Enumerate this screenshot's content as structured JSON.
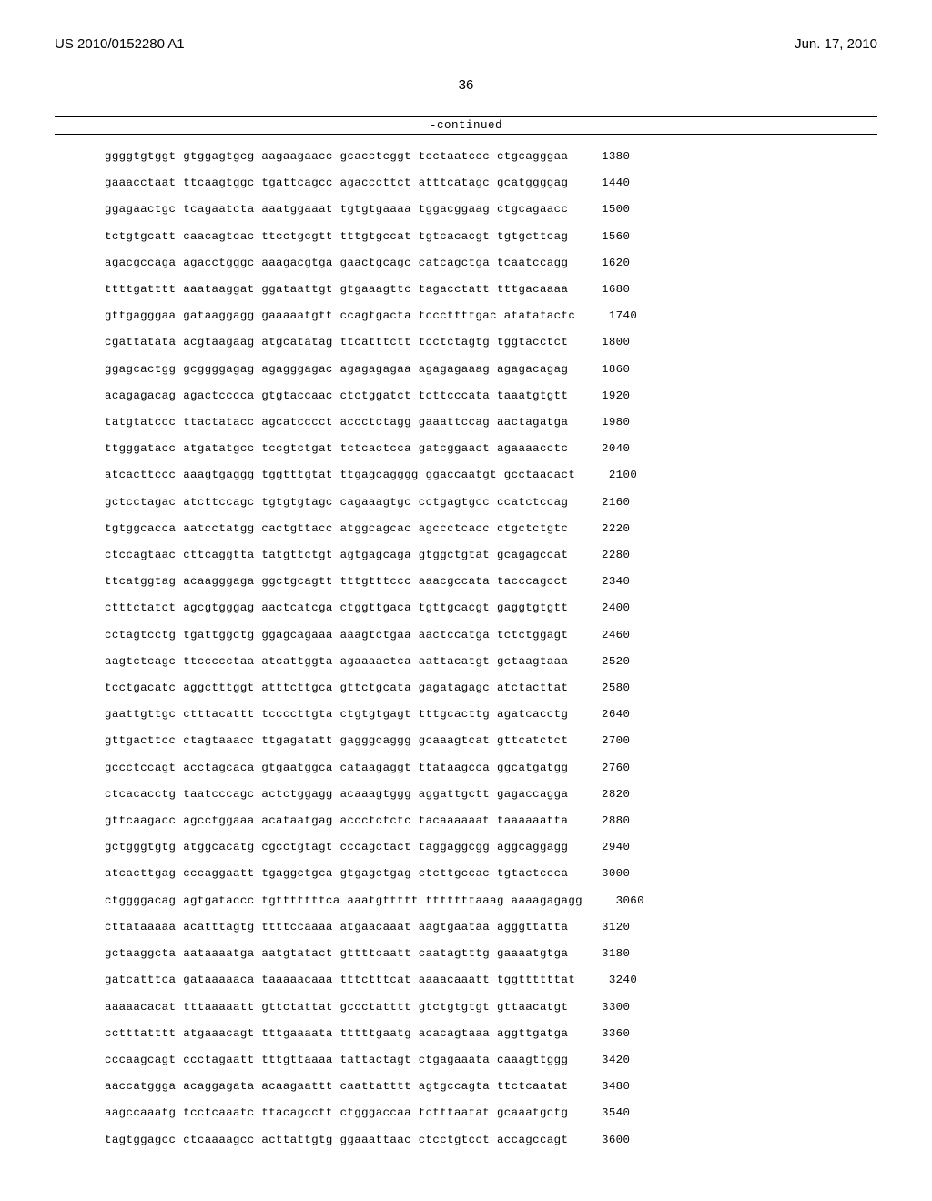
{
  "header": {
    "pubnum": "US 2010/0152280 A1",
    "pubdate": "Jun. 17, 2010",
    "pagenum": "36",
    "continued": "-continued"
  },
  "sequence": {
    "rows": [
      {
        "text": "ggggtgtggt gtggagtgcg aagaagaacc gcacctcggt tcctaatccc ctgcagggaa",
        "num": "1380"
      },
      {
        "text": "gaaacctaat ttcaagtggc tgattcagcc agacccttct atttcatagc gcatggggag",
        "num": "1440"
      },
      {
        "text": "ggagaactgc tcagaatcta aaatggaaat tgtgtgaaaa tggacggaag ctgcagaacc",
        "num": "1500"
      },
      {
        "text": "tctgtgcatt caacagtcac ttcctgcgtt tttgtgccat tgtcacacgt tgtgcttcag",
        "num": "1560"
      },
      {
        "text": "agacgccaga agacctgggc aaagacgtga gaactgcagc catcagctga tcaatccagg",
        "num": "1620"
      },
      {
        "text": "ttttgatttt aaataaggat ggataattgt gtgaaagttc tagacctatt tttgacaaaa",
        "num": "1680"
      },
      {
        "text": "gttgagggaa gataaggagg gaaaaatgtt ccagtgacta tcccttttgac atatatactc",
        "num": "1740"
      },
      {
        "text": "cgattatata acgtaagaag atgcatatag ttcatttctt tcctctagtg tggtacctct",
        "num": "1800"
      },
      {
        "text": "ggagcactgg gcggggagag agagggagac agagagagaa agagagaaag agagacagag",
        "num": "1860"
      },
      {
        "text": "acagagacag agactcccca gtgtaccaac ctctggatct tcttcccata taaatgtgtt",
        "num": "1920"
      },
      {
        "text": "tatgtatccc ttactatacc agcatcccct accctctagg gaaattccag aactagatga",
        "num": "1980"
      },
      {
        "text": "ttgggatacc atgatatgcc tccgtctgat tctcactcca gatcggaact agaaaacctc",
        "num": "2040"
      },
      {
        "text": "atcacttccc aaagtgaggg tggtttgtat ttgagcagggg ggaccaatgt gcctaacact",
        "num": "2100"
      },
      {
        "text": "gctcctagac atcttccagc tgtgtgtagc cagaaagtgc cctgagtgcc ccatctccag",
        "num": "2160"
      },
      {
        "text": "tgtggcacca aatcctatgg cactgttacc atggcagcac agccctcacc ctgctctgtc",
        "num": "2220"
      },
      {
        "text": "ctccagtaac cttcaggtta tatgttctgt agtgagcaga gtggctgtat gcagagccat",
        "num": "2280"
      },
      {
        "text": "ttcatggtag acaagggaga ggctgcagtt tttgtttccc aaacgccata tacccagcct",
        "num": "2340"
      },
      {
        "text": "ctttctatct agcgtgggag aactcatcga ctggttgaca tgttgcacgt gaggtgtgtt",
        "num": "2400"
      },
      {
        "text": "cctagtcctg tgattggctg ggagcagaaa aaagtctgaa aactccatga tctctggagt",
        "num": "2460"
      },
      {
        "text": "aagtctcagc ttccccctaa atcattggta agaaaactca aattacatgt gctaagtaaa",
        "num": "2520"
      },
      {
        "text": "tcctgacatc aggctttggt atttcttgca gttctgcata gagatagagc atctacttat",
        "num": "2580"
      },
      {
        "text": "gaattgttgc ctttacattt tccccttgta ctgtgtgagt tttgcacttg agatcacctg",
        "num": "2640"
      },
      {
        "text": "gttgacttcc ctagtaaacc ttgagatatt gagggcaggg gcaaagtcat gttcatctct",
        "num": "2700"
      },
      {
        "text": "gccctccagt acctagcaca gtgaatggca cataagaggt ttataagcca ggcatgatgg",
        "num": "2760"
      },
      {
        "text": "ctcacacctg taatcccagc actctggagg acaaagtggg aggattgctt gagaccagga",
        "num": "2820"
      },
      {
        "text": "gttcaagacc agcctggaaa acataatgag accctctctc tacaaaaaat taaaaaatta",
        "num": "2880"
      },
      {
        "text": "gctgggtgtg atggcacatg cgcctgtagt cccagctact taggaggcgg aggcaggagg",
        "num": "2940"
      },
      {
        "text": "atcacttgag cccaggaatt tgaggctgca gtgagctgag ctcttgccac tgtactccca",
        "num": "3000"
      },
      {
        "text": "ctggggacag agtgataccc tgtttttttca aaatgttttt tttttttaaag aaaagagagg",
        "num": "3060"
      },
      {
        "text": "cttataaaaa acatttagtg ttttccaaaa atgaacaaat aagtgaataa agggttatta",
        "num": "3120"
      },
      {
        "text": "gctaaggcta aataaaatga aatgtatact gttttcaatt caatagtttg gaaaatgtga",
        "num": "3180"
      },
      {
        "text": "gatcatttca gataaaaaca taaaaacaaa tttctttcat aaaacaaatt tggttttttat",
        "num": "3240"
      },
      {
        "text": "aaaaacacat tttaaaaatt gttctattat gccctatttt gtctgtgtgt gttaacatgt",
        "num": "3300"
      },
      {
        "text": "cctttatttt atgaaacagt tttgaaaata tttttgaatg acacagtaaa aggttgatga",
        "num": "3360"
      },
      {
        "text": "cccaagcagt ccctagaatt tttgttaaaa tattactagt ctgagaaata caaagttggg",
        "num": "3420"
      },
      {
        "text": "aaccatggga acaggagata acaagaattt caattatttt agtgccagta ttctcaatat",
        "num": "3480"
      },
      {
        "text": "aagccaaatg tcctcaaatc ttacagcctt ctgggaccaa tctttaatat gcaaatgctg",
        "num": "3540"
      },
      {
        "text": "tagtggagcc ctcaaaagcc acttattgtg ggaaattaac ctcctgtcct accagccagt",
        "num": "3600"
      }
    ]
  }
}
